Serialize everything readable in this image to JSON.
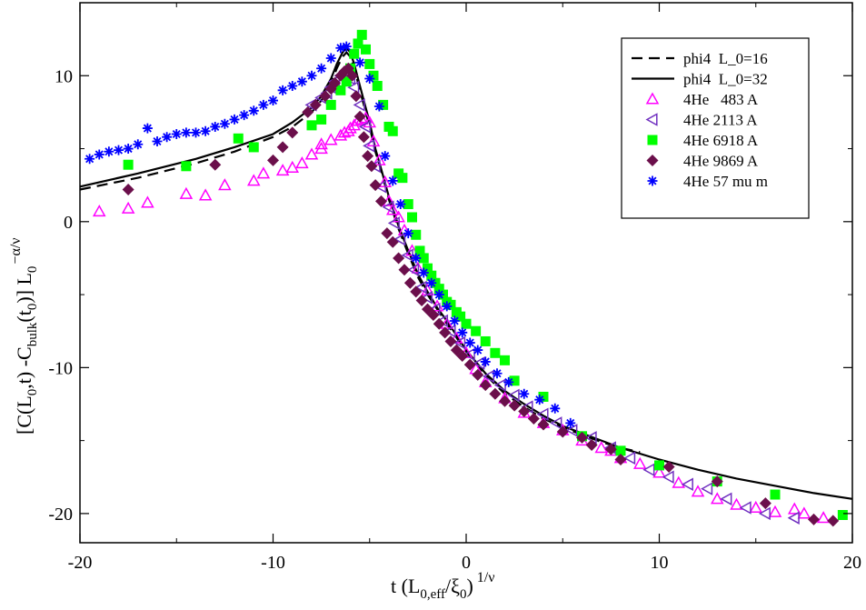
{
  "chart_data": {
    "type": "scatter",
    "title": "",
    "xlabel": "t (L_0,eff/ξ_0)^1/ν",
    "ylabel": "[C(L_0,t) - C_bulk(t_0)] L_0^-α/ν",
    "xlabel_parts": {
      "main": "t (L",
      "sub1": "0,eff",
      "mid": "/ξ",
      "sub2": "0",
      "close": ")",
      "sup": "1/ν"
    },
    "ylabel_parts": {
      "a": "[C(L",
      "a_sub": "0",
      "b": ",t) -C",
      "b_sub": "bulk",
      "c": "(t",
      "c_sub": "0",
      "d": ")] L",
      "d_sub": "0",
      "sup": "−α/ν"
    },
    "xlim": [
      -20,
      20
    ],
    "ylim": [
      -22,
      15
    ],
    "xticks": [
      -20,
      -10,
      0,
      10,
      20
    ],
    "yticks": [
      -20,
      -10,
      0,
      10
    ],
    "grid": false,
    "legend_position": "top-right",
    "curves": [
      {
        "name": "phi4  L_0=16",
        "style": "dashed",
        "color": "#000000",
        "x": [
          -20,
          -17,
          -14,
          -12,
          -10,
          -9,
          -8,
          -7.5,
          -7,
          -6.7,
          -6.4,
          -6.2,
          -6.0,
          -5.8,
          -5.5,
          -5.2,
          -5,
          -4.7,
          -4.4,
          -4,
          -3.5,
          -3,
          -2.5,
          -2,
          -1.5,
          -1,
          0,
          1,
          2,
          3,
          4,
          5,
          6,
          7,
          8,
          9
        ],
        "y": [
          2.2,
          3.0,
          4.0,
          4.8,
          5.8,
          6.5,
          7.5,
          8.3,
          9.5,
          10.5,
          11.3,
          11.6,
          11.3,
          10.5,
          9.0,
          7.5,
          6.5,
          4.8,
          3.5,
          1.5,
          -0.5,
          -2.2,
          -3.8,
          -5.0,
          -6.0,
          -7.0,
          -8.9,
          -10.5,
          -11.8,
          -12.7,
          -13.5,
          -14.1,
          -14.6,
          -15.1,
          -15.5,
          -15.8
        ]
      },
      {
        "name": "phi4  L_0=32",
        "style": "solid",
        "color": "#000000",
        "x": [
          -20,
          -17,
          -14,
          -12,
          -10,
          -9,
          -8,
          -7.5,
          -7,
          -6.7,
          -6.4,
          -6.2,
          -6.0,
          -5.8,
          -5.5,
          -5.2,
          -5,
          -4.7,
          -4.4,
          -4,
          -3.5,
          -3,
          -2.5,
          -2,
          -1.5,
          -1,
          0,
          1,
          2,
          3,
          4,
          5,
          6,
          8,
          10,
          12,
          14,
          16,
          18,
          20
        ],
        "y": [
          2.4,
          3.3,
          4.3,
          5.1,
          6.0,
          6.8,
          7.8,
          8.6,
          9.8,
          10.8,
          11.6,
          11.9,
          11.6,
          10.8,
          9.3,
          7.8,
          6.8,
          5.0,
          3.6,
          1.7,
          -0.3,
          -2.0,
          -3.6,
          -4.8,
          -5.9,
          -6.8,
          -8.8,
          -10.4,
          -11.6,
          -12.5,
          -13.3,
          -14.0,
          -14.5,
          -15.5,
          -16.3,
          -17.0,
          -17.6,
          -18.1,
          -18.6,
          -19.0
        ]
      }
    ],
    "series": [
      {
        "name": "4He   483 A",
        "marker": "triangle-up-open",
        "color": "#ff00ff",
        "x": [
          -19,
          -17.5,
          -16.5,
          -14.5,
          -13.5,
          -12.5,
          -11,
          -10.5,
          -9.5,
          -9,
          -8.5,
          -8,
          -7.5,
          -7.5,
          -7,
          -6.5,
          -6.3,
          -6.1,
          -6,
          -5.8,
          -5.6,
          -5.4,
          -5.2,
          -5.0,
          -4.8,
          -4.5,
          -4.2,
          -4.0,
          -3.8,
          -3.5,
          -3.2,
          -2.8,
          -2.5,
          -2.0,
          -1.5,
          -1.0,
          -0.5,
          0,
          0.5,
          1,
          2,
          3,
          4,
          5,
          6,
          7,
          7.5,
          8,
          9,
          10,
          11,
          12,
          13,
          14,
          15,
          16,
          17,
          17.5,
          18.5
        ],
        "y": [
          0.7,
          0.9,
          1.3,
          1.9,
          1.8,
          2.5,
          2.8,
          3.3,
          3.5,
          3.7,
          4.0,
          4.6,
          5.0,
          5.3,
          5.6,
          5.9,
          6.1,
          6.2,
          6.4,
          6.6,
          6.9,
          7.0,
          7.1,
          6.8,
          5.5,
          4.2,
          2.7,
          1.4,
          0.8,
          0.3,
          -0.6,
          -2.0,
          -3.2,
          -4.7,
          -5.8,
          -7.0,
          -8.0,
          -9.0,
          -10.1,
          -11.0,
          -12.1,
          -13.1,
          -13.8,
          -14.3,
          -15.0,
          -15.5,
          -15.7,
          -16.2,
          -16.6,
          -17.2,
          -17.9,
          -18.5,
          -19.0,
          -19.4,
          -19.6,
          -19.9,
          -19.7,
          -20.0,
          -20.3
        ]
      },
      {
        "name": "4He 2113 A",
        "marker": "triangle-left-open",
        "color": "#7030c0",
        "x": [
          -8,
          -7.5,
          -7.2,
          -7,
          -6.8,
          -6.5,
          -6.2,
          -6,
          -5.8,
          -5.5,
          -5.2,
          -5,
          -4.7,
          -4.4,
          -4.0,
          -3.7,
          -3.4,
          -3.0,
          -2.7,
          -2.3,
          -2.0,
          -1.6,
          -1.2,
          -0.8,
          -0.3,
          0.2,
          0.7,
          1.2,
          1.8,
          2.5,
          3.2,
          4,
          4.7,
          5.5,
          6.5,
          7.5,
          8.5,
          9.5,
          10.5,
          11.5,
          12.5,
          13.5,
          14.5,
          15.5,
          17
        ],
        "y": [
          8.0,
          8.5,
          8.8,
          9.2,
          9.6,
          10.0,
          10.2,
          9.8,
          9.2,
          8.0,
          6.5,
          5.2,
          3.8,
          2.4,
          1.0,
          -0.1,
          -1.2,
          -2.3,
          -3.3,
          -4.5,
          -5.2,
          -6.0,
          -6.8,
          -7.5,
          -8.3,
          -9.1,
          -9.7,
          -10.6,
          -11.2,
          -11.9,
          -12.7,
          -13.2,
          -13.8,
          -14.3,
          -14.8,
          -15.5,
          -16.2,
          -17.0,
          -17.5,
          -18.0,
          -18.3,
          -19.0,
          -19.6,
          -20.0,
          -20.3
        ]
      },
      {
        "name": "4He 6918 A",
        "marker": "square",
        "color": "#00ff00",
        "x": [
          -17.5,
          -14.5,
          -11.8,
          -11,
          -8,
          -7.5,
          -7,
          -6.5,
          -6.2,
          -6.0,
          -5.8,
          -5.6,
          -5.4,
          -5.2,
          -5.0,
          -4.8,
          -4.6,
          -4.3,
          -4.0,
          -3.8,
          -3.5,
          -3.3,
          -3.0,
          -2.8,
          -2.6,
          -2.4,
          -2.2,
          -2.0,
          -1.8,
          -1.6,
          -1.4,
          -1.2,
          -1.0,
          -0.8,
          -0.5,
          -0.3,
          0,
          0.5,
          1.0,
          1.5,
          2,
          2.5,
          4,
          6,
          8,
          10,
          13,
          16,
          19.5
        ],
        "y": [
          3.9,
          3.8,
          5.7,
          5.1,
          6.6,
          7.0,
          8.0,
          9.0,
          9.6,
          10.5,
          11.5,
          12.2,
          12.8,
          11.8,
          10.8,
          10.0,
          9.3,
          8.0,
          6.5,
          6.2,
          3.3,
          3.0,
          1.2,
          0.3,
          -0.9,
          -2.0,
          -2.5,
          -3.2,
          -3.7,
          -4.2,
          -4.6,
          -5.0,
          -5.5,
          -5.7,
          -6.2,
          -6.5,
          -7.0,
          -7.5,
          -8.2,
          -9.0,
          -9.5,
          -10.9,
          -12.0,
          -14.7,
          -15.7,
          -16.7,
          -17.8,
          -18.7,
          -20.1
        ]
      },
      {
        "name": "4He 9869 A",
        "marker": "diamond",
        "color": "#6b0f4b",
        "x": [
          -17.5,
          -13,
          -10,
          -9.5,
          -9,
          -8.2,
          -7.8,
          -7.3,
          -7.0,
          -6.8,
          -6.5,
          -6.3,
          -6.1,
          -5.9,
          -5.7,
          -5.5,
          -5.3,
          -5.1,
          -4.9,
          -4.7,
          -4.4,
          -4.1,
          -3.8,
          -3.5,
          -3.2,
          -2.9,
          -2.6,
          -2.3,
          -2.0,
          -1.7,
          -1.4,
          -1.1,
          -0.8,
          -0.5,
          -0.2,
          0.2,
          0.6,
          1.0,
          1.5,
          2.0,
          2.5,
          3.0,
          3.5,
          4.0,
          5.0,
          6.0,
          6.5,
          7.5,
          8.0,
          10.5,
          13,
          15.5,
          18,
          19
        ],
        "y": [
          2.2,
          3.9,
          4.2,
          5.1,
          6.1,
          7.5,
          8.0,
          8.6,
          9.1,
          9.5,
          10.0,
          10.3,
          10.5,
          10.0,
          8.6,
          7.2,
          5.8,
          4.5,
          3.8,
          2.5,
          1.4,
          -0.8,
          -1.4,
          -2.5,
          -3.3,
          -4.2,
          -4.8,
          -5.4,
          -6.0,
          -6.4,
          -7.0,
          -7.6,
          -8.2,
          -8.8,
          -9.2,
          -9.8,
          -10.5,
          -11.2,
          -11.8,
          -12.3,
          -12.6,
          -13.0,
          -13.5,
          -13.9,
          -14.4,
          -14.8,
          -15.3,
          -15.6,
          -16.3,
          -16.8,
          -17.8,
          -19.3,
          -20.4,
          -20.5
        ]
      },
      {
        "name": "4He 57 mu m",
        "marker": "asterisk",
        "color": "#0000ff",
        "x": [
          -19.5,
          -19,
          -18.5,
          -18,
          -17.5,
          -17,
          -16.5,
          -16,
          -15.5,
          -15,
          -14.5,
          -14,
          -13.5,
          -13,
          -12.5,
          -12,
          -11.5,
          -11,
          -10.5,
          -10,
          -9.5,
          -9,
          -8.5,
          -8,
          -7.5,
          -7,
          -6.5,
          -6.2,
          -5.5,
          -5.0,
          -4.5,
          -4.2,
          -3.8,
          -3.4,
          -3.0,
          -2.6,
          -2.2,
          -1.8,
          -1.4,
          -1.0,
          -0.6,
          -0.2,
          0.2,
          0.6,
          1.0,
          1.6,
          2.2,
          3.0,
          3.8,
          4.6,
          5.4
        ],
        "y": [
          4.3,
          4.6,
          4.8,
          4.9,
          5.0,
          5.3,
          6.4,
          5.5,
          5.8,
          6.0,
          6.1,
          6.1,
          6.2,
          6.5,
          6.7,
          7.0,
          7.3,
          7.6,
          8.0,
          8.3,
          9.0,
          9.3,
          9.6,
          10.0,
          10.5,
          11.2,
          11.9,
          12.0,
          10.9,
          9.8,
          7.9,
          4.5,
          2.8,
          1.2,
          -0.8,
          -2.5,
          -3.5,
          -4.2,
          -5.0,
          -5.8,
          -6.8,
          -7.6,
          -8.3,
          -8.8,
          -9.6,
          -10.4,
          -11.0,
          -11.8,
          -12.2,
          -12.8,
          -13.8
        ]
      }
    ]
  }
}
